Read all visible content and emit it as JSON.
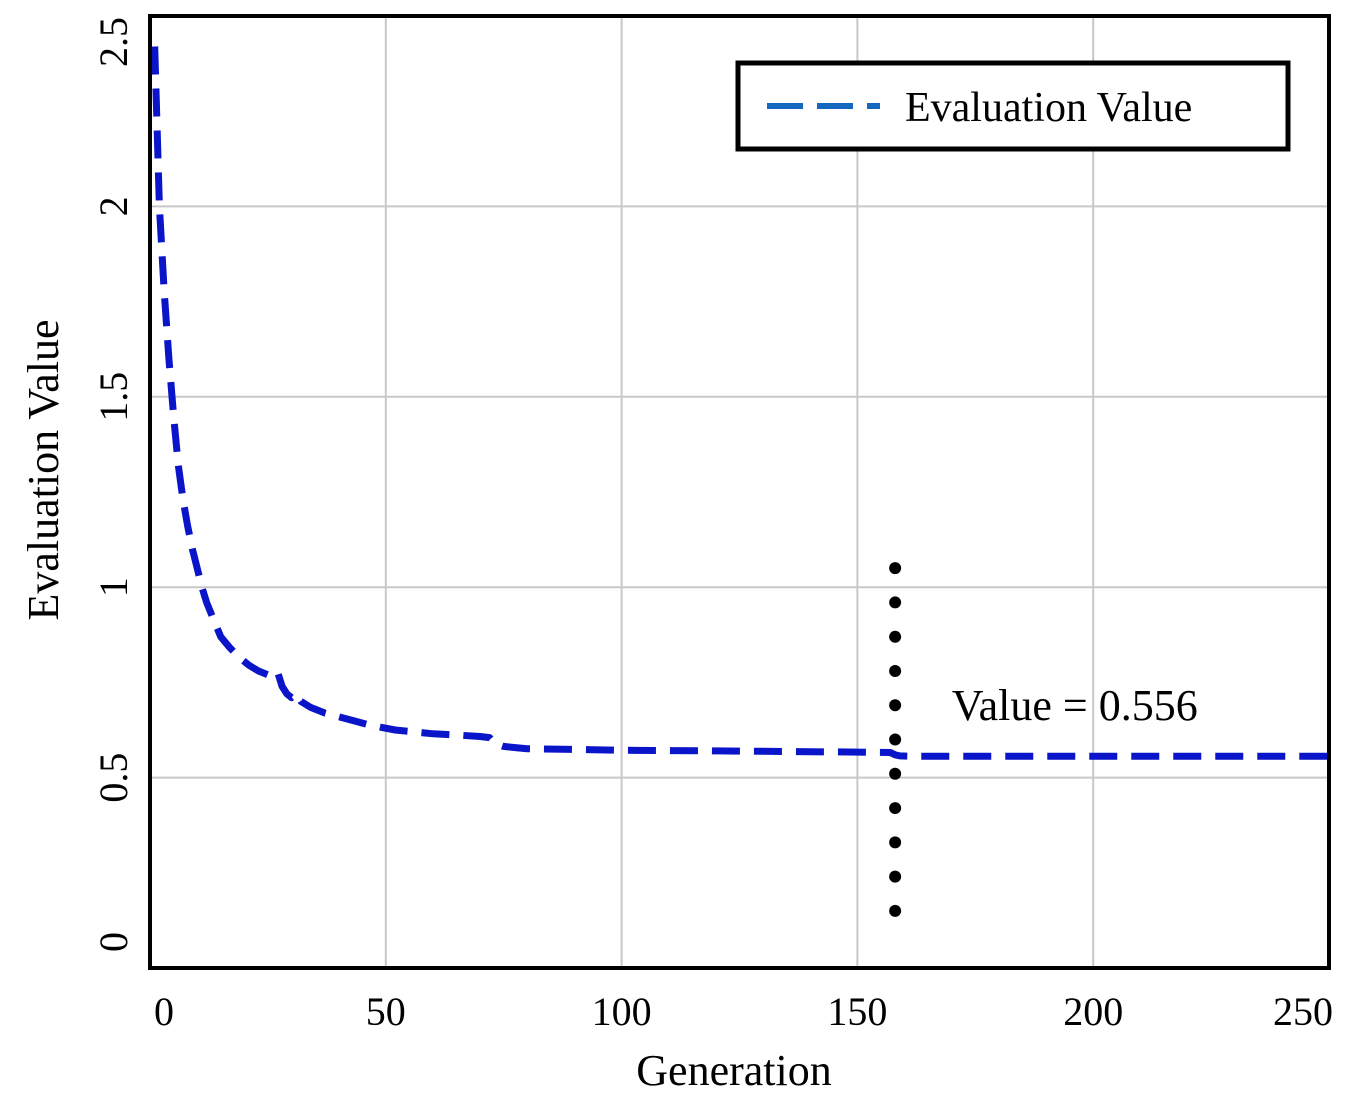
{
  "chart_data": {
    "type": "line",
    "title": "",
    "xlabel": "Generation",
    "ylabel": "Evaluation Value",
    "xlim": [
      0,
      250
    ],
    "ylim": [
      0,
      2.5
    ],
    "xticks": [
      0,
      50,
      100,
      150,
      200,
      250
    ],
    "xtick_labels": [
      "0",
      "50",
      "100",
      "150",
      "200",
      "250"
    ],
    "yticks": [
      0,
      0.5,
      1,
      1.5,
      2,
      2.5
    ],
    "ytick_labels": [
      "0",
      "0.5",
      "1",
      "1.5",
      "2",
      "2.5"
    ],
    "grid": true,
    "legend": {
      "position": "top-right",
      "entries": [
        "Evaluation Value"
      ]
    },
    "series": [
      {
        "name": "Evaluation Value",
        "style": "dashed",
        "x": [
          1,
          2,
          3,
          4,
          5,
          6,
          7,
          8,
          9,
          10,
          11,
          12,
          13,
          14,
          15,
          17,
          19,
          21,
          23,
          25,
          26,
          27,
          28,
          29,
          30,
          31,
          32,
          34,
          37,
          40,
          43,
          46,
          49,
          52,
          56,
          60,
          65,
          70,
          72,
          73,
          75,
          78,
          80,
          90,
          100,
          110,
          120,
          130,
          140,
          150,
          157,
          158,
          159,
          162,
          170,
          180,
          200,
          220,
          240,
          250
        ],
        "values": [
          2.42,
          2.0,
          1.78,
          1.6,
          1.45,
          1.32,
          1.23,
          1.16,
          1.1,
          1.05,
          1.0,
          0.96,
          0.93,
          0.9,
          0.87,
          0.84,
          0.815,
          0.795,
          0.78,
          0.77,
          0.775,
          0.78,
          0.74,
          0.72,
          0.71,
          0.72,
          0.7,
          0.685,
          0.67,
          0.66,
          0.65,
          0.64,
          0.632,
          0.625,
          0.62,
          0.615,
          0.612,
          0.608,
          0.605,
          0.59,
          0.582,
          0.578,
          0.576,
          0.574,
          0.572,
          0.571,
          0.57,
          0.569,
          0.568,
          0.567,
          0.566,
          0.56,
          0.557,
          0.556,
          0.556,
          0.556,
          0.556,
          0.556,
          0.556,
          0.556
        ]
      }
    ],
    "annotations": [
      {
        "type": "vline",
        "style": "dotted",
        "x": 158,
        "y_range": [
          0.15,
          1.05
        ]
      },
      {
        "type": "text",
        "text": "Value = 0.556",
        "x": 170,
        "y": 0.69
      }
    ]
  },
  "colors": {
    "line": "#0a14c8",
    "legend_line": "#1568c0",
    "grid": "#c8c8c8",
    "axes": "#000000",
    "dots": "#000000"
  }
}
